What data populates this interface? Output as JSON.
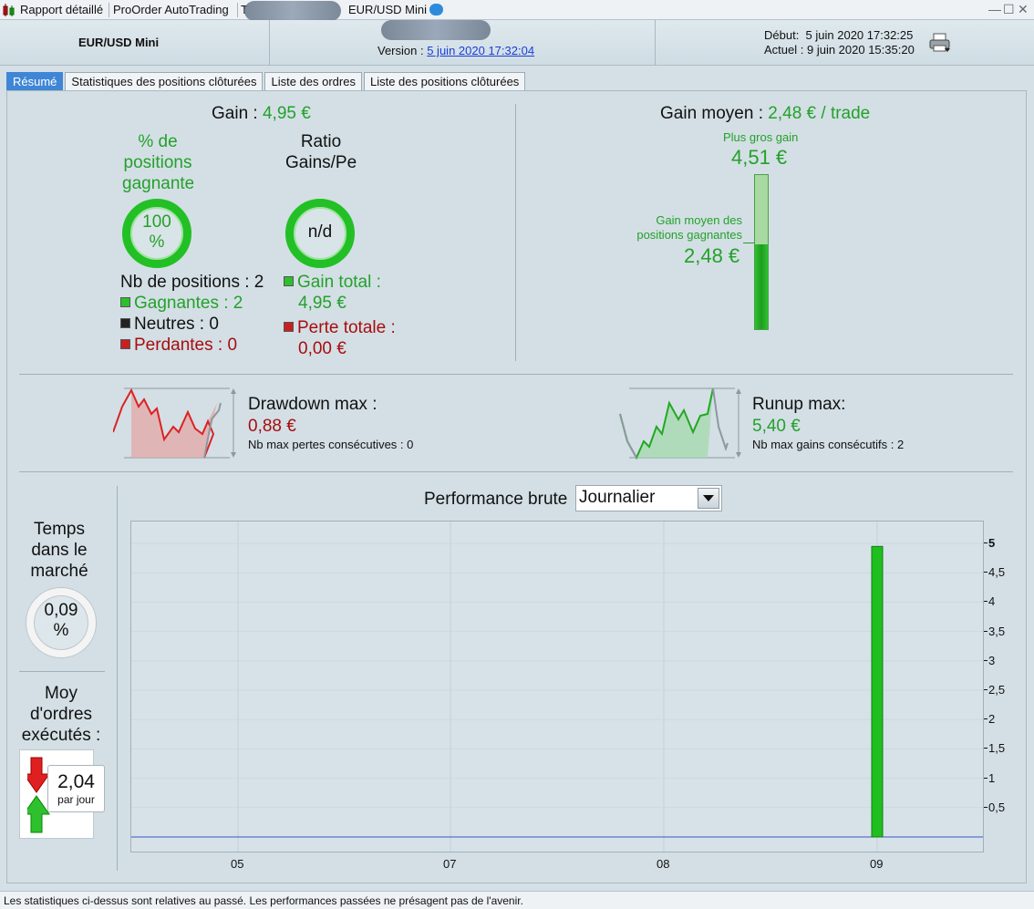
{
  "titlebar": {
    "tabs": [
      "Rapport détaillé",
      "ProOrder AutoTrading",
      "T",
      "EUR/USD Mini"
    ],
    "controls": [
      "minimize-icon",
      "maximize-icon",
      "close-icon"
    ]
  },
  "header": {
    "instrument": "EUR/USD Mini",
    "version_label": "Version :",
    "version_link": "5 juin 2020 17:32:04",
    "start_label": "Début:",
    "start_value": "5 juin 2020 17:32:25",
    "now_label": "Actuel :",
    "now_value": "9 juin 2020 15:35:20"
  },
  "tabs": [
    "Résumé",
    "Statistiques des positions clôturées",
    "Liste des ordres",
    "Liste des positions clôturées"
  ],
  "summary": {
    "gain_label": "Gain :",
    "gain_value": "4,95 €",
    "pct_label_lines": [
      "% de",
      "positions",
      "gagnante"
    ],
    "pct_value_lines": [
      "100",
      "%"
    ],
    "ratio_label_lines": [
      "Ratio",
      "Gains/Pe"
    ],
    "ratio_value": "n/d",
    "nb_positions": "Nb de positions : 2",
    "gagnantes": "Gagnantes : 2",
    "neutres": "Neutres : 0",
    "perdantes": "Perdantes : 0",
    "gain_total_label": "Gain total :",
    "gain_total_value": "4,95 €",
    "perte_totale_label": "Perte totale :",
    "perte_totale_value": "0,00 €",
    "gain_moyen_label": "Gain moyen :",
    "gain_moyen_value": "2,48 € / trade",
    "plus_gros_gain_label": "Plus gros gain",
    "plus_gros_gain_value": "4,51 €",
    "gain_moyen_gagnantes_lines": [
      "Gain moyen des",
      "positions gagnantes"
    ],
    "gain_moyen_gagnantes_value": "2,48 €",
    "bar_fill_fraction": 0.55
  },
  "risk": {
    "drawdown_label": "Drawdown max :",
    "drawdown_value": "0,88 €",
    "drawdown_sub": "Nb max pertes consécutives : 0",
    "runup_label": "Runup max:",
    "runup_value": "5,40 €",
    "runup_sub": "Nb max gains consécutifs : 2"
  },
  "side": {
    "temps_lines": [
      "Temps",
      "dans le",
      "marché"
    ],
    "temps_value_lines": [
      "0,09",
      "%"
    ],
    "moy_lines": [
      "Moy",
      "d'ordres",
      "exécutés :"
    ],
    "moy_value": "2,04",
    "moy_unit": "par jour"
  },
  "performance": {
    "title": "Performance brute",
    "period_selected": "Journalier"
  },
  "chart_data": {
    "type": "bar",
    "categories": [
      "05",
      "07",
      "08",
      "09"
    ],
    "values": [
      0,
      0,
      0,
      4.95
    ],
    "title": "Performance brute",
    "ylim": [
      0,
      5.25
    ],
    "yticks": [
      "5",
      "4,5",
      "4",
      "3,5",
      "3",
      "2,5",
      "2",
      "1,5",
      "1",
      "0,5"
    ],
    "ytick_values": [
      5,
      4.5,
      4,
      3.5,
      3,
      2.5,
      2,
      1.5,
      1,
      0.5
    ],
    "grid": true,
    "colors": {
      "bar": "#1fbf1f",
      "baseline": "#3a56c8"
    }
  },
  "footer": {
    "disclaimer": "Les statistiques ci-dessus sont relatives au passé. Les performances passées ne présagent pas de l'avenir."
  }
}
